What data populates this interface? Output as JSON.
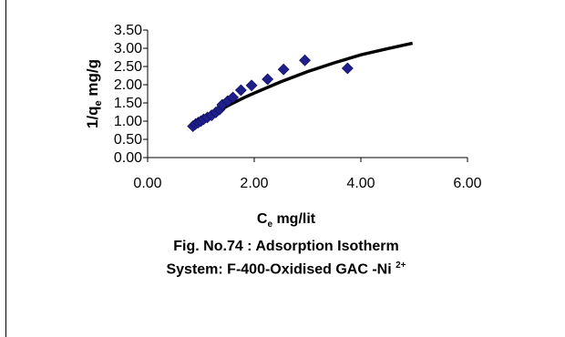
{
  "chart_data": {
    "type": "scatter",
    "xlabel_main": "C",
    "xlabel_sub": "e",
    "xlabel_rest": " mg/lit",
    "ylabel_main": "1/q",
    "ylabel_sub": "e",
    "ylabel_rest": " mg/g",
    "xlim": [
      0,
      6
    ],
    "ylim": [
      0,
      3.5
    ],
    "x_ticks": [
      "0.00",
      "2.00",
      "4.00",
      "6.00"
    ],
    "y_ticks": [
      "0.00",
      "0.50",
      "1.00",
      "1.50",
      "2.00",
      "2.50",
      "3.00",
      "3.50"
    ],
    "grid": false,
    "legend": "none",
    "marker_color": "#1f1f8c",
    "curve_color": "#000000",
    "points": [
      {
        "x": 0.85,
        "y": 0.86
      },
      {
        "x": 0.9,
        "y": 0.92
      },
      {
        "x": 0.95,
        "y": 0.96
      },
      {
        "x": 1.0,
        "y": 1.0
      },
      {
        "x": 1.05,
        "y": 1.05
      },
      {
        "x": 1.12,
        "y": 1.1
      },
      {
        "x": 1.2,
        "y": 1.16
      },
      {
        "x": 1.28,
        "y": 1.24
      },
      {
        "x": 1.35,
        "y": 1.32
      },
      {
        "x": 1.4,
        "y": 1.45
      },
      {
        "x": 1.5,
        "y": 1.55
      },
      {
        "x": 1.6,
        "y": 1.65
      },
      {
        "x": 1.75,
        "y": 1.85
      },
      {
        "x": 1.95,
        "y": 1.98
      },
      {
        "x": 2.25,
        "y": 2.15
      },
      {
        "x": 2.55,
        "y": 2.42
      },
      {
        "x": 2.95,
        "y": 2.67
      },
      {
        "x": 3.75,
        "y": 2.45
      }
    ],
    "trend": {
      "x": [
        0.8,
        1.0,
        1.2,
        1.5,
        1.8,
        2.0,
        2.5,
        3.0,
        3.5,
        4.0,
        4.5,
        4.97
      ],
      "y": [
        0.83,
        1.0,
        1.17,
        1.42,
        1.64,
        1.77,
        2.08,
        2.36,
        2.6,
        2.82,
        2.99,
        3.14
      ]
    }
  },
  "caption": {
    "line1": "Fig. No.74 :  Adsorption Isotherm",
    "line2": "System: F-400-Oxidised GAC -Ni ",
    "line2_sup": "2+"
  }
}
